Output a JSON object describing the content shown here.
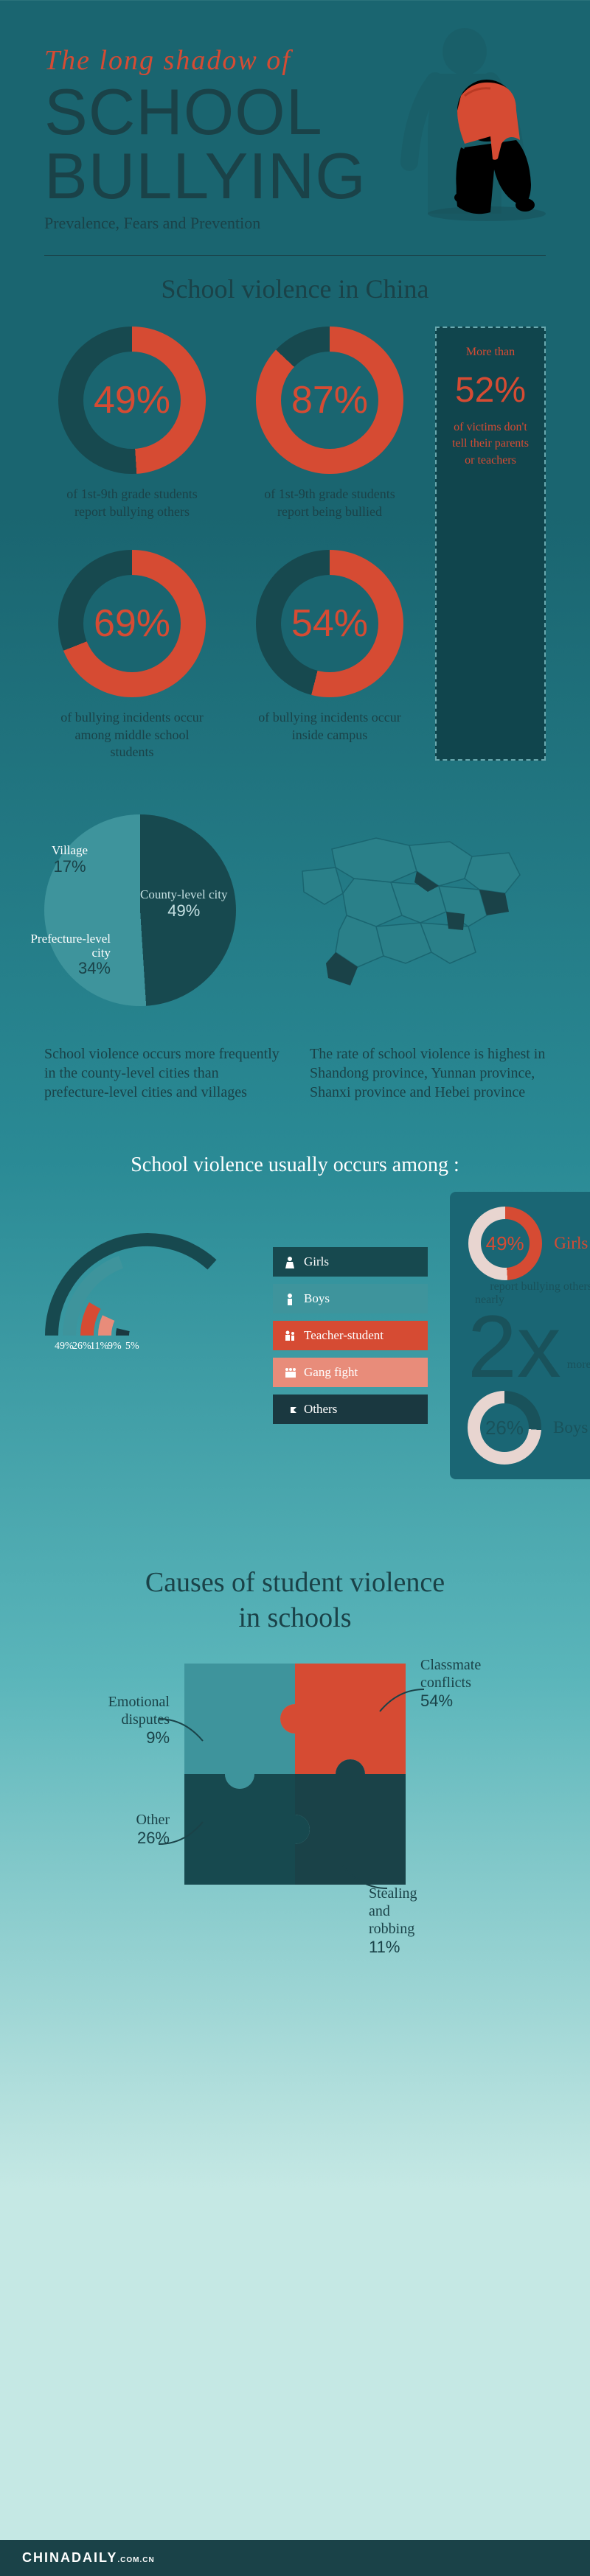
{
  "header": {
    "title_pre": "The long shadow of",
    "title_main_1": "SCHOOL",
    "title_main_2": "BULLYING",
    "subtitle": "Prevalence, Fears and Prevention"
  },
  "colors": {
    "accent": "#d64b33",
    "secondary": "#17494f",
    "secondary2": "#3e949c",
    "bg_dark": "#1a6570",
    "navy": "#1a4248",
    "light": "#e8d5d0"
  },
  "section1": {
    "heading": "School violence in China",
    "donuts": [
      {
        "value": 49,
        "label": "49%",
        "caption": "of 1st-9th grade students report bullying others"
      },
      {
        "value": 87,
        "label": "87%",
        "caption": "of 1st-9th grade students report being bullied"
      },
      {
        "value": 69,
        "label": "69%",
        "caption": "of bullying incidents occur among middle school students"
      },
      {
        "value": 54,
        "label": "54%",
        "caption": "of bullying incidents occur inside campus"
      }
    ],
    "sidebar": {
      "line1": "More than",
      "big": "52%",
      "line2": "of victims don't tell their parents or teachers"
    }
  },
  "pie": {
    "slices": [
      {
        "label": "County-level city",
        "value": 49,
        "color": "#17494f"
      },
      {
        "label": "Prefecture-level city",
        "value": 34,
        "color": "#3e949c"
      },
      {
        "label": "Village",
        "value": 17,
        "color": "#d64b33"
      }
    ]
  },
  "textrow": {
    "left": "School violence occurs more frequently in the county-level cities than prefecture-level cities and villages",
    "right": "The rate of school violence is highest in Shandong province, Yunnan province, Shanxi province and Hebei province"
  },
  "among": {
    "heading": "School violence usually occurs among :",
    "categories": [
      {
        "label": "Girls",
        "value": 49,
        "color": "#17494f"
      },
      {
        "label": "Boys",
        "value": 26,
        "color": "#3e949c"
      },
      {
        "label": "Teacher-student",
        "value": 11,
        "color": "#d64b33"
      },
      {
        "label": "Gang fight",
        "value": 9,
        "color": "#e88c7a"
      },
      {
        "label": "Others",
        "value": 5,
        "color": "#1a3840"
      }
    ],
    "arc_labels": [
      "49%",
      "26%",
      "11%",
      "9%",
      "5%"
    ]
  },
  "compare": {
    "girls_pct": 49,
    "girls_label": "49%",
    "girls_text": "Girls",
    "mid": "report bullying others",
    "nearly": "nearly",
    "big": "2x",
    "more": "more than",
    "boys_pct": 26,
    "boys_label": "26%",
    "boys_text": "Boys"
  },
  "causes": {
    "heading_1": "Causes of student violence",
    "heading_2": "in schools",
    "items": [
      {
        "label": "Classmate conflicts",
        "value": "54%",
        "color": "#d64b33"
      },
      {
        "label": "Emotional disputes",
        "value": "9%",
        "color": "#3e949c"
      },
      {
        "label": "Other",
        "value": "26%",
        "color": "#17494f"
      },
      {
        "label": "Stealing and robbing",
        "value": "11%",
        "color": "#1a4248"
      }
    ]
  },
  "footer": {
    "brand": "CHINADAILY",
    "suffix": ".COM.CN"
  }
}
